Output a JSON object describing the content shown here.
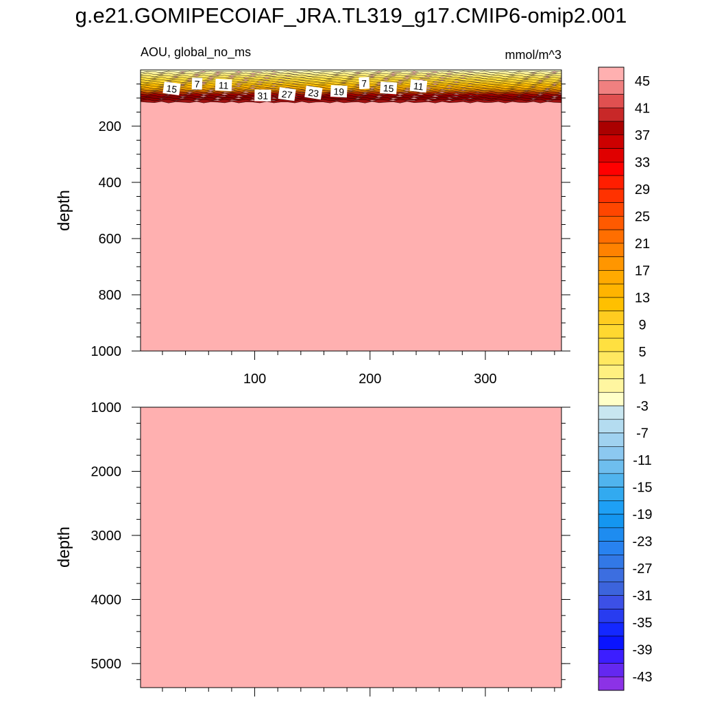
{
  "title": "g.e21.GOMIPECOIAF_JRA.TL319_g17.CMIP6-omip2.001",
  "chart_data": {
    "type": "heatmap",
    "variable_label": "AOU, global_no_ms",
    "units": "mmol/m^3",
    "x_ticks": [
      100,
      200,
      300
    ],
    "xlim": [
      1,
      366
    ],
    "top_panel": {
      "ylabel": "depth",
      "ylim": [
        0,
        1000
      ],
      "y_ticks": [
        200,
        400,
        600,
        800,
        1000
      ],
      "contour_labels": [
        {
          "value": "15",
          "x": 28,
          "depth": 67
        },
        {
          "value": "7",
          "x": 50,
          "depth": 50
        },
        {
          "value": "11",
          "x": 73,
          "depth": 55
        },
        {
          "value": "31",
          "x": 107,
          "depth": 92
        },
        {
          "value": "27",
          "x": 128,
          "depth": 87
        },
        {
          "value": "23",
          "x": 151,
          "depth": 82
        },
        {
          "value": "19",
          "x": 173,
          "depth": 77
        },
        {
          "value": "7",
          "x": 195,
          "depth": 48
        },
        {
          "value": "15",
          "x": 216,
          "depth": 65
        },
        {
          "value": "11",
          "x": 242,
          "depth": 58
        }
      ],
      "surface_layer_depth": 115,
      "deep_value_color": "#ffb0b0"
    },
    "bottom_panel": {
      "ylabel": "depth",
      "ylim": [
        1000,
        5375
      ],
      "y_ticks": [
        1000,
        2000,
        3000,
        4000,
        5000
      ],
      "deep_value_color": "#ffb0b0"
    },
    "colorbar": {
      "levels": [
        45,
        41,
        37,
        33,
        29,
        25,
        21,
        17,
        13,
        9,
        5,
        1,
        -3,
        -7,
        -11,
        -15,
        -19,
        -23,
        -27,
        -31,
        -35,
        -39,
        -43
      ],
      "colors": [
        "#ffb0b0",
        "#f08080",
        "#e05050",
        "#c82828",
        "#aa0000",
        "#cc0000",
        "#e00000",
        "#ff0000",
        "#ff1e00",
        "#ff3200",
        "#ff4600",
        "#ff5a00",
        "#ff6e00",
        "#ff8200",
        "#ff9600",
        "#ffaa00",
        "#ffb400",
        "#ffc000",
        "#ffcc20",
        "#ffd830",
        "#ffe040",
        "#ffe860",
        "#fff080",
        "#fff6a0",
        "#ffffc8",
        "#c8e6f0",
        "#b4dcf0",
        "#a0d2f0",
        "#8cc8f0",
        "#6ebeee",
        "#50b4ee",
        "#32aaf0",
        "#1ea0f5",
        "#1496f0",
        "#1e8cf0",
        "#2882f0",
        "#3278e6",
        "#3c6ee0",
        "#3c64dc",
        "#3c50e6",
        "#283cf0",
        "#1428ff",
        "#0a14ff",
        "#3c1eff",
        "#6428f0",
        "#8c32e6"
      ]
    }
  }
}
